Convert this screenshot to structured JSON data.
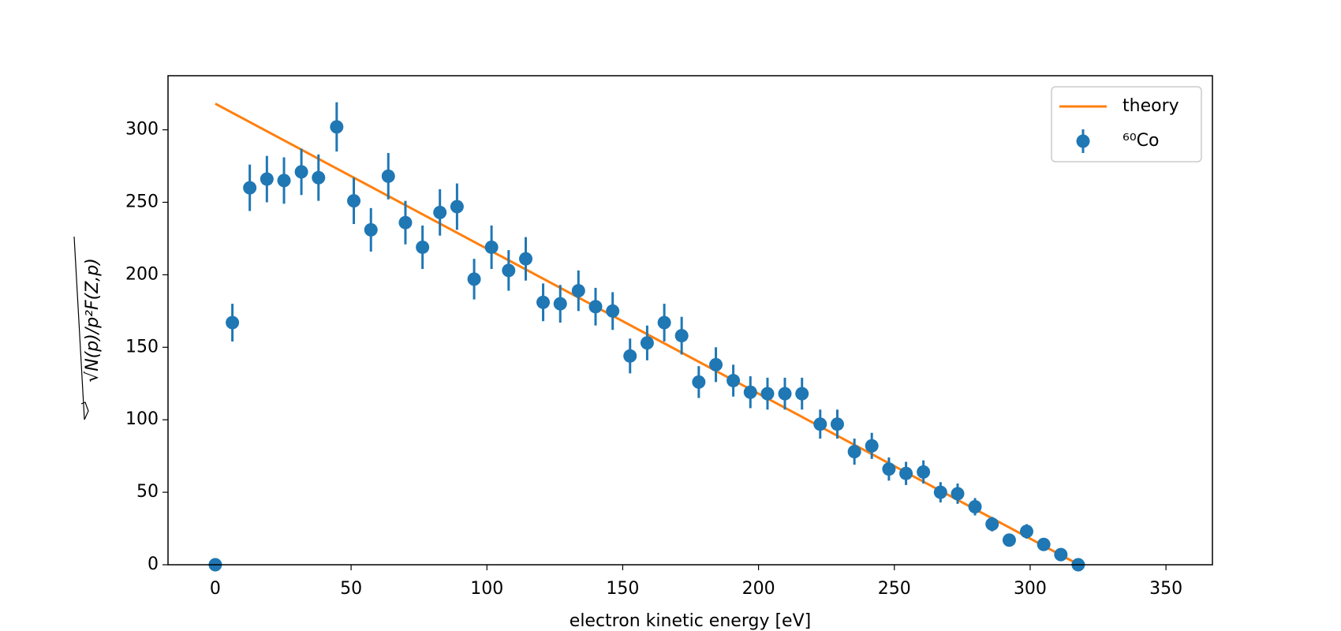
{
  "chart_data": {
    "type": "scatter",
    "x_label": "electron kinetic energy [eV]",
    "y_label": "√N(p)/p²F(Z,p)",
    "xlim": [
      -17.4,
      367.1
    ],
    "ylim": [
      0,
      337.3
    ],
    "xticks": [
      0,
      50,
      100,
      150,
      200,
      250,
      300,
      350
    ],
    "yticks": [
      0,
      50,
      100,
      150,
      200,
      250,
      300
    ],
    "grid": false,
    "legend": "upper right",
    "series": [
      {
        "name": "theory",
        "type": "line",
        "color": "#ff7f0e",
        "x": [
          0,
          318
        ],
        "values": [
          318,
          0
        ]
      },
      {
        "name": "⁶⁰Co",
        "type": "errorbar",
        "color": "#1f77b4",
        "x": [
          0,
          6.3,
          12.7,
          19.0,
          25.3,
          31.7,
          38.0,
          44.7,
          51.0,
          57.3,
          63.7,
          70.0,
          76.3,
          82.7,
          89.0,
          95.3,
          101.7,
          108.0,
          114.3,
          120.7,
          127.0,
          133.7,
          140.0,
          146.3,
          152.7,
          159.0,
          165.3,
          171.7,
          178.0,
          184.3,
          190.7,
          197.0,
          203.3,
          209.7,
          216.0,
          222.7,
          229.0,
          235.3,
          241.7,
          248.0,
          254.3,
          260.7,
          267.0,
          273.3,
          279.7,
          286.0,
          292.3,
          298.7,
          305.0,
          311.3,
          317.7
        ],
        "values": [
          0,
          167,
          260,
          266,
          265,
          271,
          267,
          302,
          251,
          231,
          268,
          236,
          219,
          243,
          247,
          197,
          219,
          203,
          211,
          181,
          180,
          189,
          178,
          175,
          144,
          153,
          167,
          158,
          126,
          138,
          127,
          119,
          118,
          118,
          118,
          97,
          97,
          78,
          82,
          66,
          63,
          64,
          50,
          49,
          40,
          28,
          17,
          23,
          14,
          7,
          0
        ],
        "errors": [
          0,
          13,
          16,
          16,
          16,
          16,
          16,
          17,
          16,
          15,
          16,
          15,
          15,
          16,
          16,
          14,
          15,
          14,
          15,
          13,
          13,
          14,
          13,
          13,
          12,
          12,
          13,
          13,
          11,
          12,
          11,
          11,
          11,
          11,
          11,
          10,
          10,
          9,
          9,
          8,
          8,
          8,
          7,
          7,
          6,
          5,
          4,
          5,
          4,
          3,
          0
        ]
      }
    ]
  }
}
